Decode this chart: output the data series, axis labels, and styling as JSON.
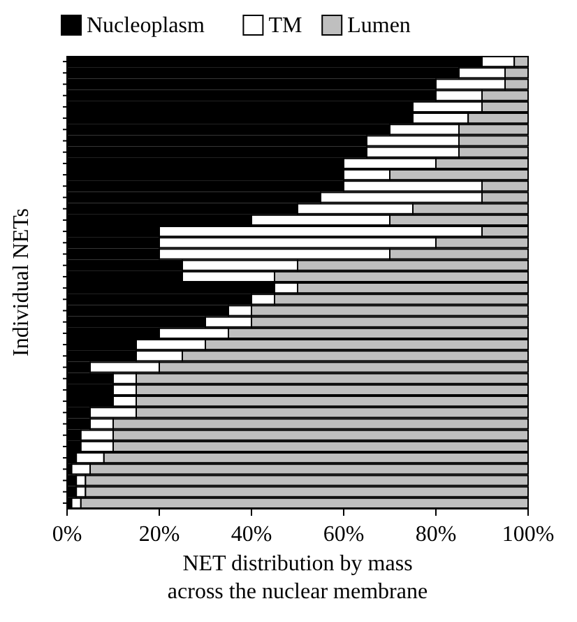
{
  "chart_data": {
    "type": "bar",
    "orientation": "horizontal",
    "stacked": true,
    "xlabel": "NET distribution by mass across the nuclear membrane",
    "ylabel": "Individual NETs",
    "legend": "top",
    "categories": [
      null,
      null,
      null,
      null,
      null,
      null,
      null,
      null,
      null,
      null,
      null,
      null,
      null,
      null,
      null,
      null,
      null,
      null,
      null,
      null,
      null,
      null,
      null,
      null,
      null,
      null,
      null,
      null,
      null,
      null,
      null,
      null,
      null,
      null,
      null,
      null,
      null,
      null,
      null,
      null
    ],
    "xlim": [
      0,
      100
    ],
    "xticks": [
      {
        "value": 0,
        "label": "0%"
      },
      {
        "value": 20,
        "label": "20%"
      },
      {
        "value": 40,
        "label": "40%"
      },
      {
        "value": 60,
        "label": "60%"
      },
      {
        "value": 80,
        "label": "80%"
      },
      {
        "value": 100,
        "label": "100%"
      }
    ],
    "series": [
      {
        "name": "Nucleoplasm",
        "color": "#000000",
        "values": [
          90,
          85,
          80,
          80,
          75,
          75,
          70,
          65,
          65,
          60,
          60,
          60,
          55,
          50,
          40,
          20,
          20,
          20,
          25,
          25,
          45,
          40,
          35,
          30,
          20,
          15,
          15,
          5,
          10,
          10,
          10,
          5,
          5,
          3,
          3,
          2,
          1,
          2,
          2,
          1
        ]
      },
      {
        "name": "TM",
        "color": "#ffffff",
        "values": [
          7,
          10,
          15,
          10,
          15,
          12,
          15,
          20,
          20,
          20,
          10,
          30,
          35,
          25,
          30,
          70,
          60,
          50,
          25,
          20,
          5,
          5,
          5,
          10,
          15,
          15,
          10,
          15,
          5,
          5,
          5,
          10,
          5,
          7,
          7,
          6,
          4,
          2,
          2,
          2
        ]
      },
      {
        "name": "Lumen",
        "color": "#bfbfbf",
        "values": [
          3,
          5,
          5,
          10,
          10,
          13,
          15,
          15,
          15,
          20,
          30,
          10,
          10,
          25,
          30,
          10,
          20,
          30,
          50,
          55,
          50,
          55,
          60,
          60,
          65,
          70,
          75,
          80,
          85,
          85,
          85,
          85,
          90,
          90,
          90,
          92,
          95,
          96,
          96,
          97
        ]
      }
    ]
  }
}
